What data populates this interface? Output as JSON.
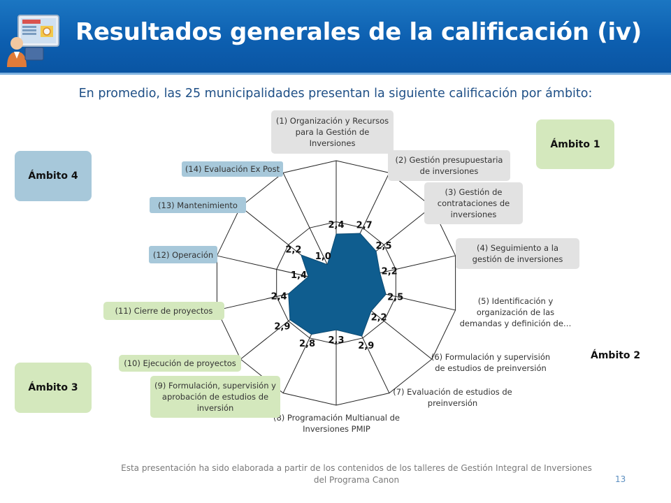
{
  "title": "Resultados generales de la calificación (iv)",
  "subtitle": "En promedio, las 25 municipalidades presentan la siguiente calificación por ámbito:",
  "ambitos": {
    "a1": "Ámbito 1",
    "a2": "Ámbito 2",
    "a3": "Ámbito 3",
    "a4": "Ámbito 4"
  },
  "colors": {
    "header": "#0d5fb0",
    "series_fill": "#0f5d8f",
    "ambito_blue": "#a7c8da",
    "ambito_green": "#d4e8bd",
    "ambito_grey": "#e2e2e2"
  },
  "chart_data": {
    "type": "radar",
    "categories": [
      "(1) Organización y Recursos para la Gestión de Inversiones",
      "(2) Gestión presupuestaria de inversiones",
      "(3) Gestión de contrataciones de inversiones",
      "(4) Seguimiento a la gestión de inversiones",
      "(5) Identificación y organización de las demandas y definición de…",
      "(6) Formulación y supervisión de estudios de preinversión",
      "(7) Evaluación de estudios de preinversión",
      "(8) Programación Multianual de Inversiones PMIP",
      "(9) Formulación, supervisión y aprobación de estudios de inversión",
      "(10) Ejecución de proyectos",
      "(11) Cierre de proyectos",
      "(12) Operación",
      "(13) Mantenimiento",
      "(14) Evaluación Ex Post"
    ],
    "values": [
      2.4,
      2.7,
      2.5,
      2.2,
      2.5,
      2.2,
      2.9,
      2.3,
      2.8,
      2.9,
      2.4,
      1.4,
      2.2,
      1.0
    ],
    "value_labels": [
      "2,4",
      "2,7",
      "2,5",
      "2,2",
      "2,5",
      "2,2",
      "2,9",
      "2,3",
      "2,8",
      "2,9",
      "2,4",
      "1,4",
      "2,2",
      "1,0"
    ],
    "rmax": 6,
    "ring_step": 3,
    "grid": true
  },
  "footer": "Esta presentación ha sido elaborada a partir de los contenidos de los talleres de Gestión Integral de Inversiones del Programa Canon",
  "page_number": "13"
}
